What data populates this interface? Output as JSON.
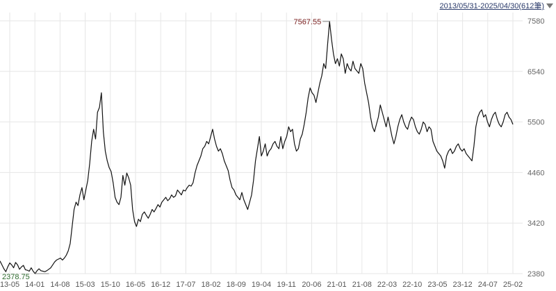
{
  "header": {
    "range_label": "2013/05/31-2025/04/30(612筆)"
  },
  "chart_data": {
    "type": "line",
    "title": "",
    "xlabel": "",
    "ylabel": "",
    "y_ticks": [
      2380,
      3420,
      4460,
      5500,
      6540,
      7580
    ],
    "ylim": [
      2380,
      7580
    ],
    "x_tick_labels": [
      "13-05",
      "14-01",
      "14-08",
      "15-03",
      "15-10",
      "16-05",
      "16-12",
      "17-07",
      "18-02",
      "18-09",
      "19-04",
      "19-11",
      "20-06",
      "21-01",
      "21-08",
      "22-03",
      "22-10",
      "23-05",
      "23-12",
      "24-07",
      "25-02"
    ],
    "annotations": {
      "max_label": "7567.55",
      "min_label": "2378.75"
    },
    "grid": true,
    "colors": {
      "line": "#111111",
      "grid": "#e6e6e6",
      "max_label": "#7a1f1f",
      "min_label": "#2e6b2e"
    },
    "series": [
      {
        "values": [
          2640,
          2560,
          2480,
          2420,
          2520,
          2600,
          2560,
          2500,
          2610,
          2560,
          2470,
          2520,
          2550,
          2460,
          2450,
          2430,
          2500,
          2430,
          2380,
          2440,
          2480,
          2440,
          2430,
          2420,
          2440,
          2470,
          2500,
          2560,
          2620,
          2660,
          2680,
          2700,
          2660,
          2700,
          2760,
          2850,
          3000,
          3350,
          3700,
          3850,
          3780,
          4000,
          4150,
          3900,
          4100,
          4300,
          4650,
          5100,
          5350,
          5150,
          5700,
          5800,
          6100,
          5300,
          4900,
          4700,
          4560,
          4480,
          4250,
          3950,
          3850,
          3800,
          3950,
          4400,
          4200,
          4450,
          4350,
          4200,
          3700,
          3450,
          3350,
          3500,
          3450,
          3600,
          3650,
          3580,
          3520,
          3600,
          3700,
          3650,
          3720,
          3800,
          3750,
          3850,
          3900,
          3950,
          3880,
          3920,
          4000,
          3950,
          3980,
          4100,
          4050,
          4000,
          4100,
          4080,
          4150,
          4200,
          4180,
          4250,
          4450,
          4600,
          4700,
          4800,
          4950,
          5000,
          5100,
          5050,
          5200,
          5350,
          5150,
          5000,
          4900,
          4950,
          4850,
          4700,
          4600,
          4500,
          4300,
          4150,
          4100,
          4000,
          3950,
          3900,
          4050,
          3900,
          3800,
          3700,
          3850,
          4000,
          4300,
          4700,
          4950,
          5200,
          4800,
          4900,
          5050,
          4800,
          4900,
          4950,
          5050,
          5100,
          5000,
          4950,
          5200,
          4950,
          5100,
          5200,
          5400,
          5300,
          5350,
          5050,
          4900,
          4950,
          5150,
          5250,
          5450,
          5700,
          6000,
          6200,
          6100,
          6050,
          5900,
          6100,
          6300,
          6450,
          6700,
          6600,
          7100,
          7567.55,
          7200,
          6900,
          6700,
          6800,
          6650,
          6900,
          6800,
          6500,
          6700,
          6600,
          6550,
          6750,
          6600,
          6550,
          6500,
          6700,
          6600,
          6300,
          6100,
          5900,
          5600,
          5400,
          5300,
          5450,
          5600,
          5850,
          5700,
          5550,
          5400,
          5600,
          5400,
          5200,
          5050,
          5200,
          5400,
          5550,
          5650,
          5500,
          5400,
          5350,
          5500,
          5600,
          5550,
          5400,
          5300,
          5250,
          5350,
          5500,
          5450,
          5300,
          5400,
          5350,
          5100,
          5000,
          4900,
          4850,
          4800,
          4700,
          4550,
          4800,
          4900,
          4950,
          4850,
          4900,
          5000,
          5050,
          4950,
          4900,
          4950,
          4850,
          4800,
          4750,
          4700,
          5000,
          5400,
          5600,
          5700,
          5750,
          5600,
          5650,
          5500,
          5400,
          5550,
          5650,
          5700,
          5550,
          5450,
          5400,
          5500,
          5650,
          5700,
          5600,
          5550,
          5450
        ]
      }
    ]
  }
}
